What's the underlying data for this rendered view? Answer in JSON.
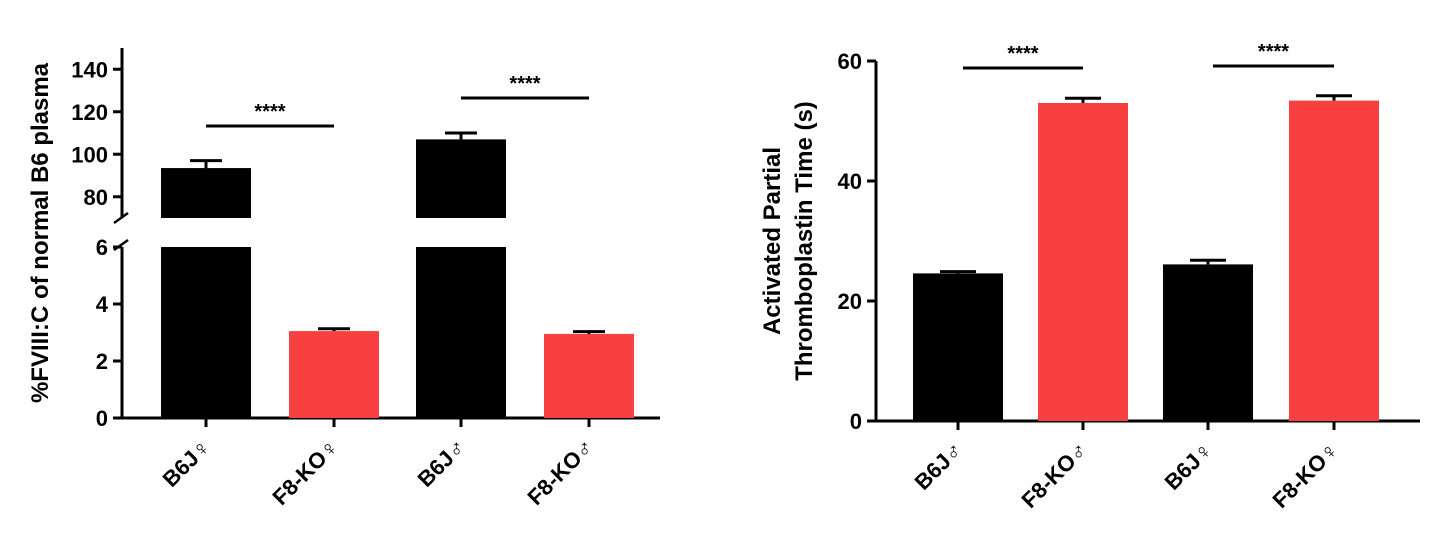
{
  "chart_data": [
    {
      "type": "bar",
      "ylabel": "%FVIII:C of normal B6 plasma",
      "y_axis_break": {
        "lower_range": [
          0,
          6
        ],
        "upper_range": [
          70,
          150
        ]
      },
      "yticks_lower": [
        "0",
        "2",
        "4",
        "6"
      ],
      "yticks_upper": [
        "80",
        "100",
        "120",
        "140"
      ],
      "categories": [
        "B6J♀",
        "F8-KO♀",
        "B6J♂",
        "F8-KO♂"
      ],
      "values": [
        93.5,
        3.05,
        107,
        2.95
      ],
      "errors": [
        3.5,
        0.08,
        3,
        0.08
      ],
      "bar_colors": [
        "#000000",
        "#f84040",
        "#000000",
        "#f84040"
      ],
      "significance": [
        {
          "from": 0,
          "to": 1,
          "label": "****"
        },
        {
          "from": 2,
          "to": 3,
          "label": "****"
        }
      ]
    },
    {
      "type": "bar",
      "ylabel": [
        "Activated Partial",
        "Thromboplastin Time (s)"
      ],
      "ylim": [
        0,
        60
      ],
      "yticks": [
        "0",
        "20",
        "40",
        "60"
      ],
      "categories": [
        "B6J♂",
        "F8-KO♂",
        "B6J♀",
        "F8-KO♀"
      ],
      "values": [
        24.6,
        53,
        26.1,
        53.4
      ],
      "errors": [
        0.3,
        0.8,
        0.7,
        0.8
      ],
      "bar_colors": [
        "#000000",
        "#f84040",
        "#000000",
        "#f84040"
      ],
      "significance": [
        {
          "from": 0,
          "to": 1,
          "label": "****"
        },
        {
          "from": 2,
          "to": 3,
          "label": "****"
        }
      ]
    }
  ]
}
